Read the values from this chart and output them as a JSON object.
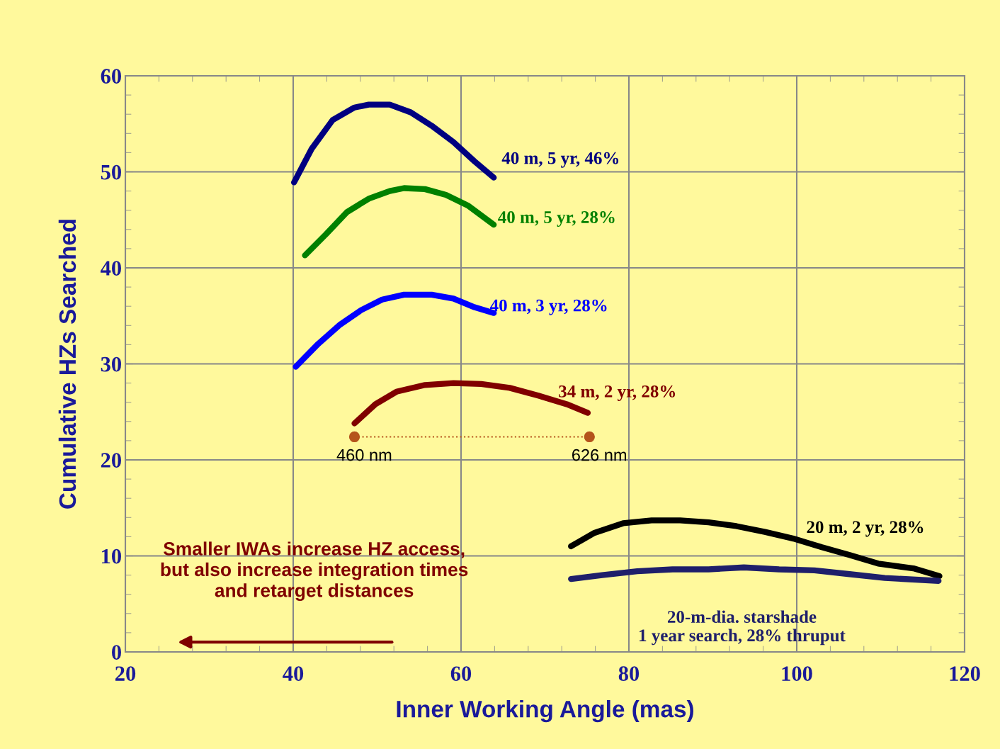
{
  "chart_data": {
    "type": "line",
    "xlabel": "Inner Working Angle (mas)",
    "ylabel": "Cumulative HZs Searched",
    "xlim": [
      20,
      120
    ],
    "xticks": [
      20,
      40,
      60,
      80,
      100,
      120
    ],
    "ylim": [
      0,
      60
    ],
    "yticks": [
      0,
      10,
      20,
      30,
      40,
      50,
      60
    ],
    "grid": true,
    "legend": false,
    "marker": "none",
    "line_style": "solid",
    "series": [
      {
        "name": "40 m, 5 yr, 46%",
        "color": "#000080",
        "x": [
          40.1,
          42.2,
          44.7,
          47.3,
          49,
          51.5,
          54,
          56.5,
          59.1,
          61.6,
          63.9
        ],
        "values": [
          48.9,
          52.4,
          55.4,
          56.7,
          57.0,
          57.0,
          56.2,
          54.8,
          53.1,
          51.1,
          49.4
        ]
      },
      {
        "name": "40 m, 5 yr, 28%",
        "color": "#008000",
        "x": [
          41.4,
          43.9,
          46.4,
          49,
          51.5,
          53.2,
          55.7,
          58.2,
          60.8,
          63.9
        ],
        "values": [
          41.3,
          43.5,
          45.8,
          47.2,
          48.0,
          48.3,
          48.2,
          47.6,
          46.5,
          44.5
        ]
      },
      {
        "name": "40 m, 3 yr, 28%",
        "color": "#0000ff",
        "x": [
          40.3,
          43,
          45.6,
          48.1,
          50.6,
          53.2,
          56.5,
          59.1,
          61.6,
          63.9
        ],
        "values": [
          29.7,
          32.1,
          34.1,
          35.6,
          36.7,
          37.2,
          37.2,
          36.8,
          35.9,
          35.3
        ]
      },
      {
        "name": "34 m, 2 yr, 28%",
        "color": "#800000",
        "x": [
          47.3,
          49.8,
          52.3,
          55.7,
          59.1,
          62.4,
          65.8,
          69.2,
          72.6,
          75.1
        ],
        "values": [
          23.8,
          25.8,
          27.1,
          27.8,
          28.0,
          27.9,
          27.5,
          26.7,
          25.8,
          24.9
        ]
      },
      {
        "color": "#b5541c",
        "marker": "circle",
        "line_style": "dotted",
        "x": [
          47.3,
          75.3
        ],
        "values": [
          22.4,
          22.4
        ]
      },
      {
        "name": "20 m, 2 yr, 28%",
        "color": "#000000",
        "x": [
          73.1,
          75.9,
          79.3,
          82.7,
          86.1,
          89.5,
          92.8,
          96.2,
          99.6,
          103,
          106.3,
          109.7,
          113.9,
          117.0
        ],
        "values": [
          11.0,
          12.4,
          13.4,
          13.7,
          13.7,
          13.5,
          13.1,
          12.5,
          11.8,
          10.9,
          10.1,
          9.2,
          8.7,
          7.9
        ]
      },
      {
        "name": "20-m-dia. starshade\n1 year search, 28% thruput",
        "color": "#1f1f6b",
        "x": [
          73.1,
          76.8,
          81,
          85.2,
          89.5,
          93.7,
          97.9,
          102.1,
          106.3,
          110.5,
          116.9
        ],
        "values": [
          7.6,
          8.0,
          8.4,
          8.6,
          8.6,
          8.8,
          8.6,
          8.5,
          8.1,
          7.7,
          7.4
        ]
      }
    ],
    "annotations": [
      {
        "text": "460 nm",
        "x": 47.3,
        "y": 22.4
      },
      {
        "text": "626 nm",
        "x": 75.3,
        "y": 22.4
      },
      "Smaller IWAs increase HZ access,\nbut also increase integration times\nand retarget distances"
    ]
  }
}
